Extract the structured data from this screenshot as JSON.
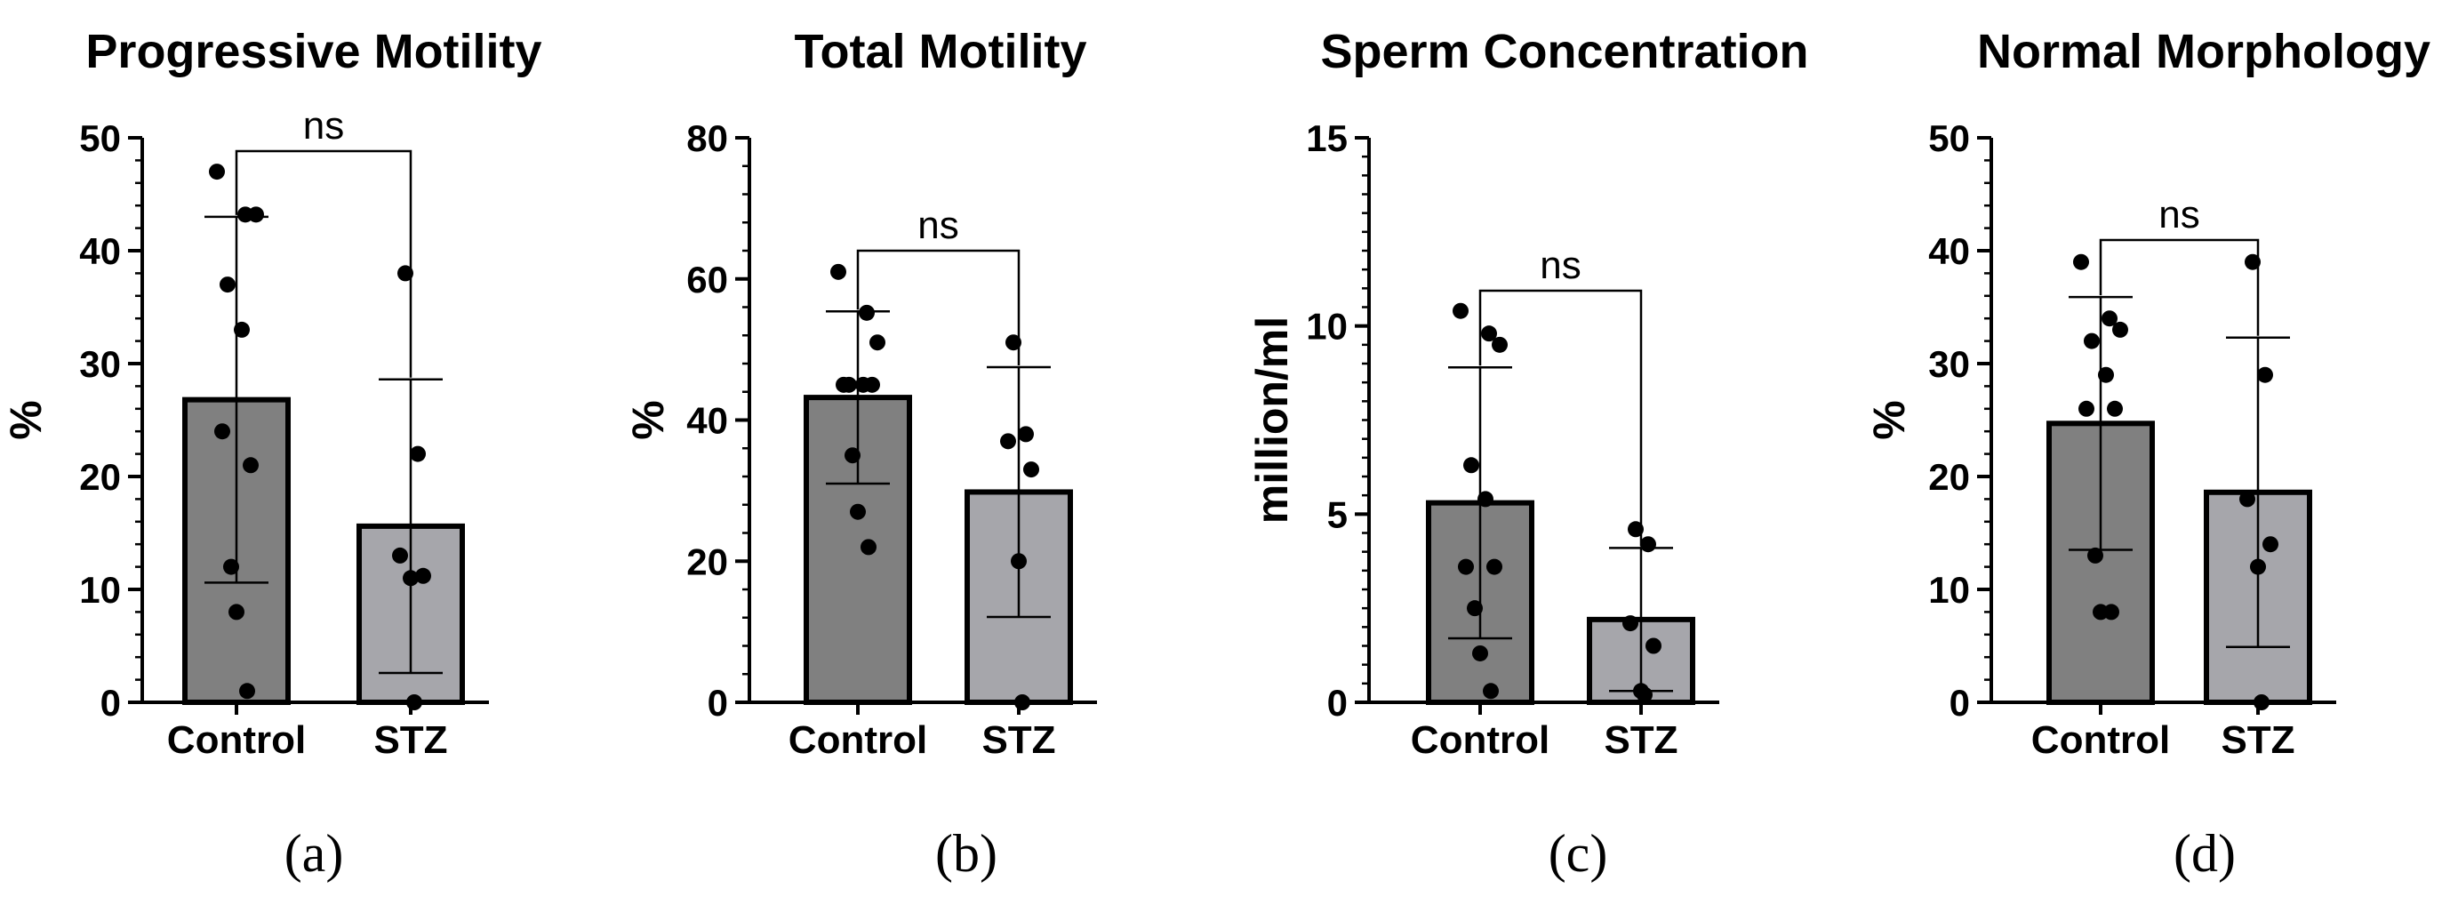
{
  "figure": {
    "panel_labels": [
      "(a)",
      "(b)",
      "(c)",
      "(d)"
    ]
  },
  "colors": {
    "control_bar": "#808080",
    "stz_bar": "#a6a6ab",
    "ink": "#000000"
  },
  "chart_data": [
    {
      "type": "bar",
      "title": "Progressive Motility",
      "xlabel": "",
      "ylabel": "%",
      "categories": [
        "Control",
        "STZ"
      ],
      "ylim": [
        0,
        50
      ],
      "major_ticks": [
        0,
        10,
        20,
        30,
        40,
        50
      ],
      "minor_step": 2,
      "values": [
        26.8,
        15.6
      ],
      "sd": [
        16.2,
        13.0
      ],
      "points": [
        [
          47,
          43.2,
          43.2,
          37,
          33,
          24,
          21,
          12,
          8,
          1
        ],
        [
          38,
          22,
          13,
          11.2,
          11,
          0
        ]
      ],
      "annotation": "ns"
    },
    {
      "type": "bar",
      "title": "Total Motility",
      "xlabel": "",
      "ylabel": "%",
      "categories": [
        "Control",
        "STZ"
      ],
      "ylim": [
        0,
        80
      ],
      "major_ticks": [
        0,
        20,
        40,
        60,
        80
      ],
      "minor_step": 4,
      "values": [
        43.2,
        29.8
      ],
      "sd": [
        12.2,
        17.7
      ],
      "points": [
        [
          61,
          55.2,
          51,
          45,
          45,
          45,
          45,
          35,
          27,
          22
        ],
        [
          51,
          38,
          37,
          33,
          20,
          0
        ]
      ],
      "annotation": "ns"
    },
    {
      "type": "bar",
      "title": "Sperm Concentration",
      "xlabel": "",
      "ylabel": "million/ml",
      "categories": [
        "Control",
        "STZ"
      ],
      "ylim": [
        0,
        15
      ],
      "major_ticks": [
        0,
        5,
        10,
        15
      ],
      "minor_step": 0.5,
      "values": [
        5.3,
        2.2
      ],
      "sd": [
        3.6,
        1.9
      ],
      "points": [
        [
          10.4,
          9.8,
          9.5,
          6.3,
          5.4,
          3.6,
          3.6,
          2.5,
          1.3,
          0.3
        ],
        [
          4.6,
          4.2,
          2.1,
          1.5,
          0.3,
          0.2
        ]
      ],
      "annotation": "ns"
    },
    {
      "type": "bar",
      "title": "Normal Morphology",
      "xlabel": "",
      "ylabel": "%",
      "categories": [
        "Control",
        "STZ"
      ],
      "ylim": [
        0,
        50
      ],
      "major_ticks": [
        0,
        10,
        20,
        30,
        40,
        50
      ],
      "minor_step": 2,
      "values": [
        24.7,
        18.6
      ],
      "sd": [
        11.2,
        13.7
      ],
      "points": [
        [
          39,
          34,
          33,
          32,
          29,
          26,
          26,
          13,
          8,
          8
        ],
        [
          39,
          29,
          18,
          14,
          12,
          0
        ]
      ],
      "annotation": "ns"
    }
  ]
}
